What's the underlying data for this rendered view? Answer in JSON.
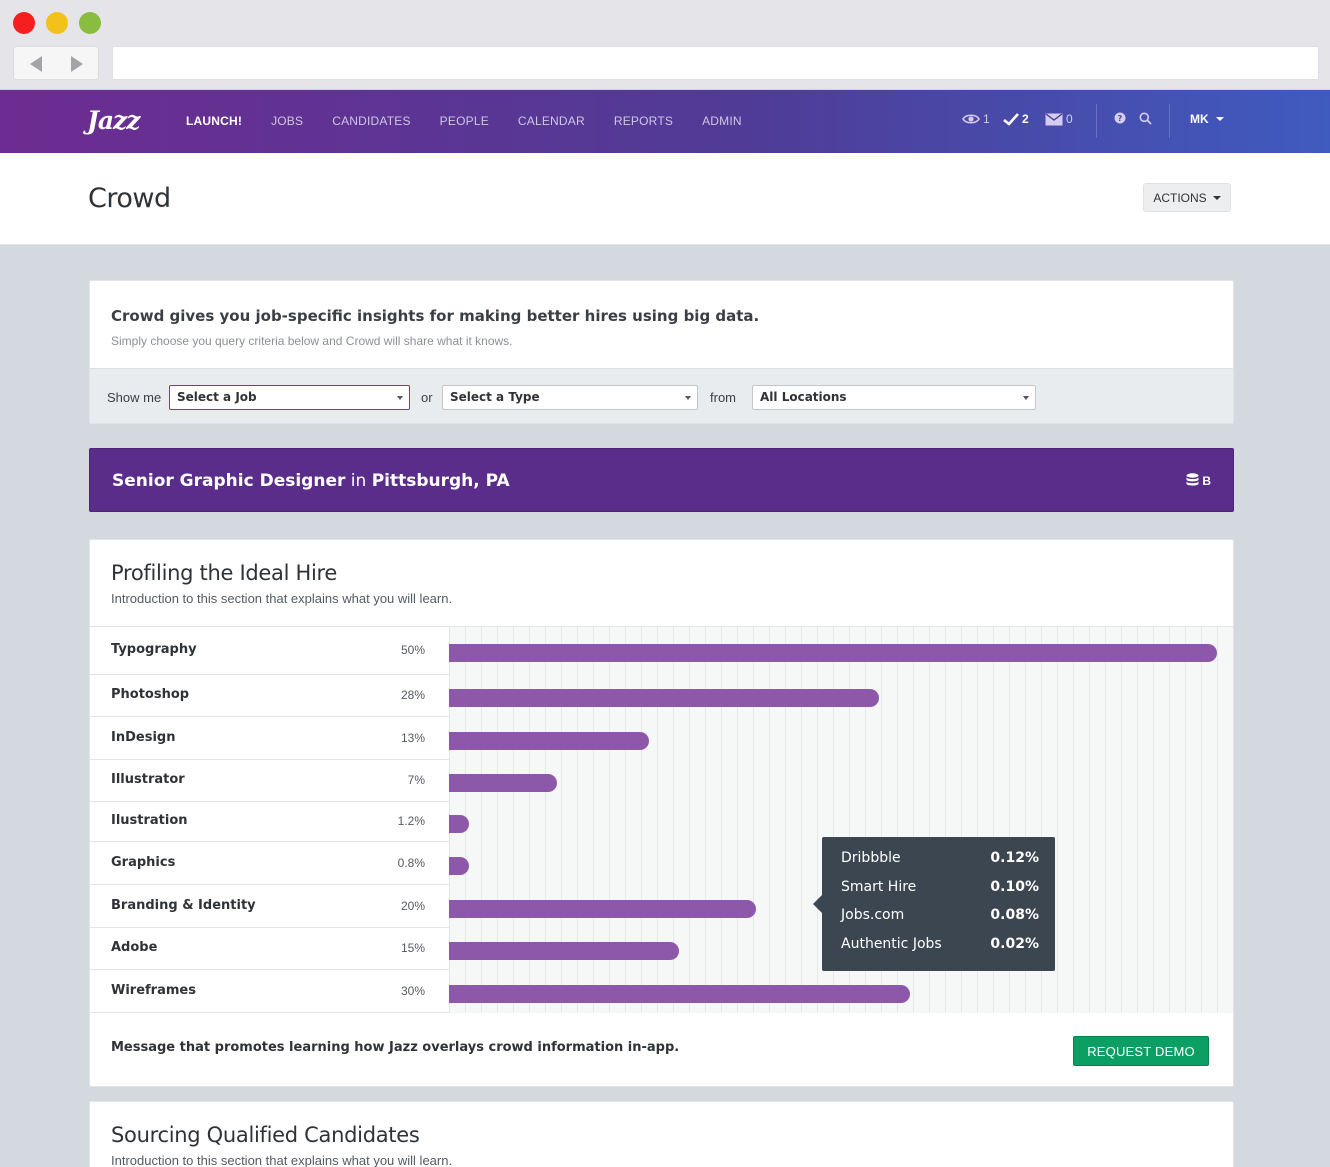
{
  "nav": {
    "logo": "Jazz",
    "links": [
      "LAUNCH!",
      "JOBS",
      "CANDIDATES",
      "PEOPLE",
      "CALENDAR",
      "REPORTS",
      "ADMIN"
    ],
    "active": "LAUNCH!",
    "views_count": "1",
    "tasks_count": "2",
    "messages_count": "0",
    "user_initials": "MK"
  },
  "header": {
    "title": "Crowd",
    "actions_label": "ACTIONS"
  },
  "intro": {
    "title": "Crowd gives you job-specific insights for making better hires using big data.",
    "subtitle": "Simply choose you query criteria below and Crowd will share what it knows.",
    "show_me_label": "Show me",
    "job_select": "Select a Job",
    "or_label": "or",
    "type_select": "Select a Type",
    "from_label": "from",
    "location_select": "All Locations"
  },
  "banner": {
    "job": "Senior Graphic Designer",
    "in_word": "in",
    "location": "Pittsburgh, PA",
    "data_label": "B"
  },
  "profiling": {
    "title": "Profiling the Ideal Hire",
    "description": "Introduction to this section that explains what you will learn.",
    "skills": [
      {
        "name": "Typography",
        "pct_label": "50%",
        "value": 50
      },
      {
        "name": "Photoshop",
        "pct_label": "28%",
        "value": 28
      },
      {
        "name": "InDesign",
        "pct_label": "13%",
        "value": 13
      },
      {
        "name": "Illustrator",
        "pct_label": "7%",
        "value": 7
      },
      {
        "name": "Ilustration",
        "pct_label": "1.2%",
        "value": 1.2
      },
      {
        "name": "Graphics",
        "pct_label": "0.8%",
        "value": 0.8
      },
      {
        "name": "Branding & Identity",
        "pct_label": "20%",
        "value": 20
      },
      {
        "name": "Adobe",
        "pct_label": "15%",
        "value": 15
      },
      {
        "name": "Wireframes",
        "pct_label": "30%",
        "value": 30
      }
    ],
    "tooltip": [
      {
        "source": "Dribbble",
        "value": "0.12%"
      },
      {
        "source": "Smart Hire",
        "value": "0.10%"
      },
      {
        "source": "Jobs.com",
        "value": "0.08%"
      },
      {
        "source": "Authentic Jobs",
        "value": "0.02%"
      }
    ],
    "promo": "Message that promotes learning how Jazz overlays crowd information in-app.",
    "demo_button": "REQUEST DEMO"
  },
  "sourcing": {
    "title": "Sourcing Qualified Candidates",
    "description": "Introduction to this section that explains what you will learn."
  },
  "colors": {
    "nav_start": "#6d2c91",
    "nav_end": "#3f5bbf",
    "banner": "#5a2d8a",
    "bar": "#8e58aa",
    "demo_button": "#0c9f63",
    "tooltip": "#3c4650"
  }
}
